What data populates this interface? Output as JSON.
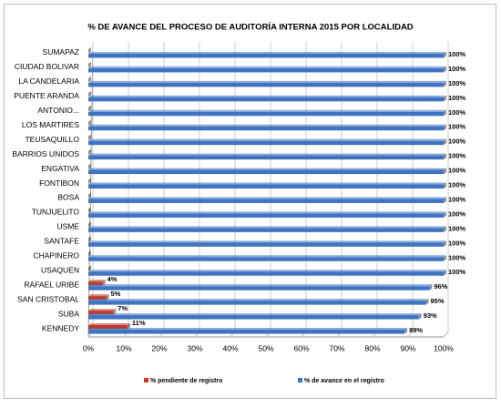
{
  "chart_data": {
    "type": "bar",
    "orientation": "horizontal",
    "title": "% DE AVANCE DEL PROCESO DE AUDITORÍA INTERNA 2015 POR LOCALIDAD",
    "categories": [
      "SUMAPAZ",
      "CIUDAD BOLIVAR",
      "LA CANDELARIA",
      "PUENTE ARANDA",
      "ANTONIO...",
      "LOS MARTIRES",
      "TEUSAQUILLO",
      "BARRIOS UNIDOS",
      "ENGATIVA",
      "FONTIBON",
      "BOSA",
      "TUNJUELITO",
      "USME",
      "SANTAFE",
      "CHAPINERO",
      "USAQUEN",
      "RAFAEL URIBE",
      "SAN CRISTOBAL",
      "SUBA",
      "KENNEDY"
    ],
    "series": [
      {
        "name": "% pendiente de registro",
        "color": "#c0392b",
        "values": [
          0,
          0,
          0,
          0,
          0,
          0,
          0,
          0,
          0,
          0,
          0,
          0,
          0,
          0,
          0,
          0,
          4,
          5,
          7,
          11
        ],
        "value_labels": [
          null,
          null,
          null,
          null,
          null,
          null,
          null,
          null,
          null,
          null,
          null,
          null,
          null,
          null,
          null,
          null,
          "4%",
          "5%",
          "7%",
          "11%"
        ]
      },
      {
        "name": "% de avance en el registro",
        "color": "#3f74c2",
        "values": [
          100,
          100,
          100,
          100,
          100,
          100,
          100,
          100,
          100,
          100,
          100,
          100,
          100,
          100,
          100,
          100,
          96,
          95,
          93,
          89
        ],
        "value_labels": [
          "100%",
          "100%",
          "100%",
          "100%",
          "100%",
          "100%",
          "100%",
          "100%",
          "100%",
          "100%",
          "100%",
          "100%",
          "100%",
          "100%",
          "100%",
          "100%",
          "96%",
          "95%",
          "93%",
          "89%"
        ]
      }
    ],
    "xlim": [
      0,
      100
    ],
    "xticks": [
      {
        "value": 0,
        "label": "0%"
      },
      {
        "value": 10,
        "label": "10%"
      },
      {
        "value": 20,
        "label": "20%"
      },
      {
        "value": 30,
        "label": "30%"
      },
      {
        "value": 40,
        "label": "40%"
      },
      {
        "value": 50,
        "label": "50%"
      },
      {
        "value": 60,
        "label": "60%"
      },
      {
        "value": 70,
        "label": "70%"
      },
      {
        "value": 80,
        "label": "80%"
      },
      {
        "value": 90,
        "label": "90%"
      },
      {
        "value": 100,
        "label": "100%"
      }
    ],
    "grid": true,
    "legend": "bottom"
  }
}
